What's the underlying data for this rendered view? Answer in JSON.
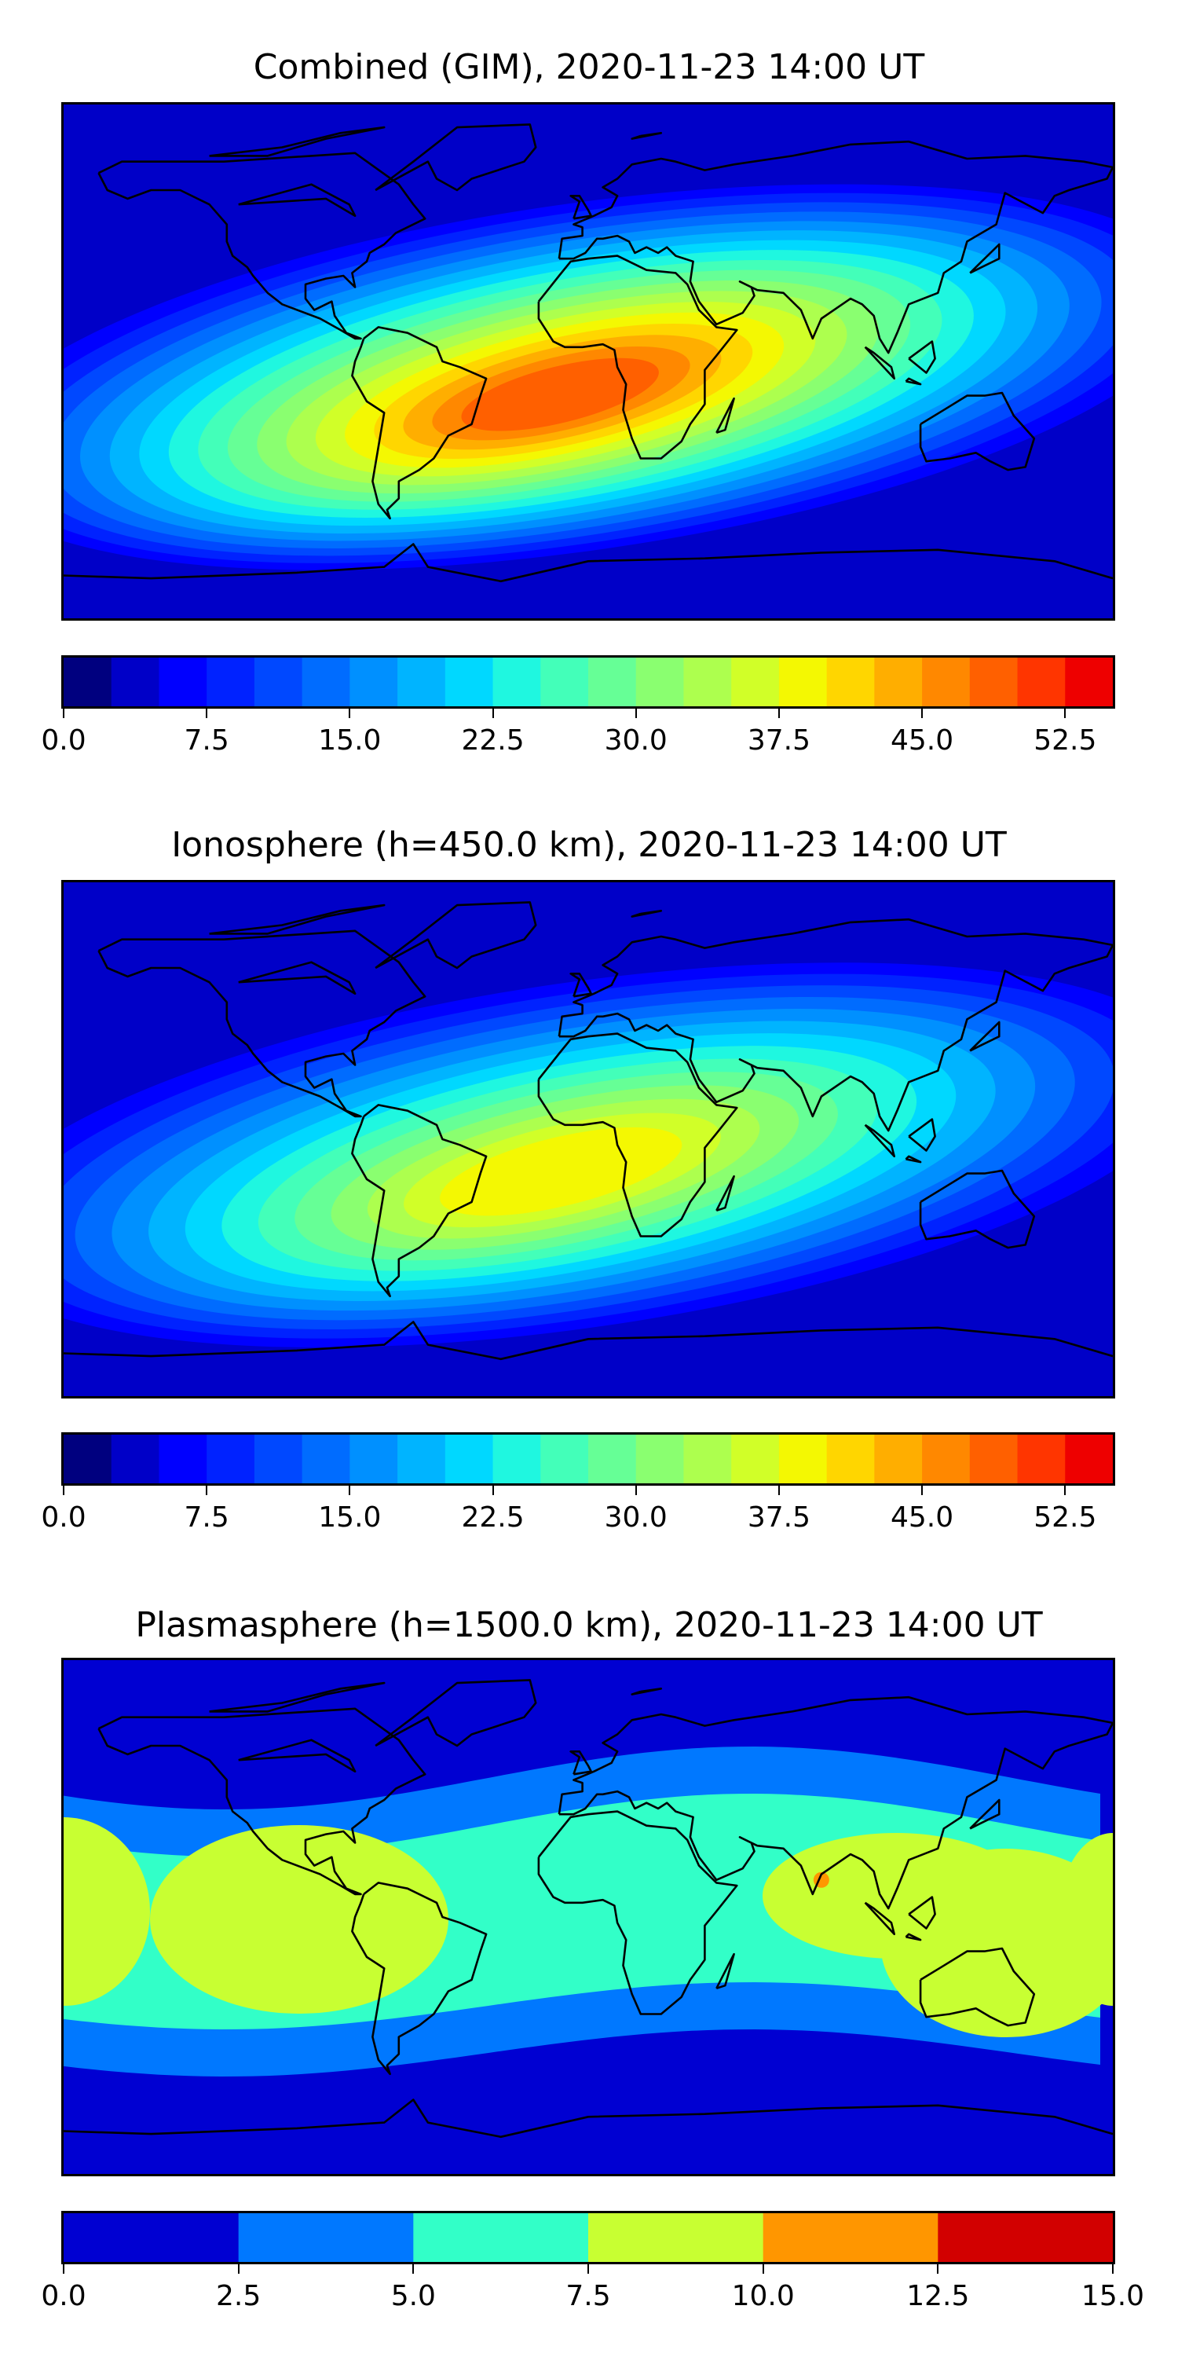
{
  "panels": [
    {
      "title": "Combined (GIM), 2020-11-23 14:00 UT",
      "scale": "tec_jet_22",
      "hotspot": {
        "lon": -10,
        "lat": -12,
        "peak": 49
      },
      "colorbar": {
        "min": 0.0,
        "max": 55.0,
        "levels": 22,
        "ticks": [
          "0.0",
          "7.5",
          "15.0",
          "22.5",
          "30.0",
          "37.5",
          "45.0",
          "52.5"
        ],
        "tick_values": [
          0,
          7.5,
          15,
          22.5,
          30,
          37.5,
          45,
          52.5
        ]
      }
    },
    {
      "title": "Ionosphere  (h=450.0 km), 2020-11-23 14:00 UT",
      "scale": "tec_jet_22",
      "hotspot": {
        "lon": -10,
        "lat": -12,
        "peak": 40
      },
      "colorbar": {
        "min": 0.0,
        "max": 55.0,
        "levels": 22,
        "ticks": [
          "0.0",
          "7.5",
          "15.0",
          "22.5",
          "30.0",
          "37.5",
          "45.0",
          "52.5"
        ],
        "tick_values": [
          0,
          7.5,
          15,
          22.5,
          30,
          37.5,
          45,
          52.5
        ]
      }
    },
    {
      "title": "Plasmasphere (h=1500.0 km), 2020-11-23 14:00 UT",
      "scale": "plasma_6",
      "colorbar": {
        "min": 0.0,
        "max": 15.0,
        "levels": 6,
        "ticks": [
          "0.0",
          "2.5",
          "5.0",
          "7.5",
          "10.0",
          "12.5",
          "15.0"
        ],
        "tick_values": [
          0,
          2.5,
          5,
          7.5,
          10,
          12.5,
          15
        ]
      }
    }
  ],
  "colors": {
    "tec_jet_22": [
      "#00007f",
      "#0000c8",
      "#0000ff",
      "#0022ff",
      "#0048ff",
      "#006cff",
      "#0090ff",
      "#00b4ff",
      "#00d8ff",
      "#1ff7e0",
      "#43ffb9",
      "#66ff96",
      "#8aff70",
      "#adff4e",
      "#d1ff28",
      "#f4f802",
      "#ffd600",
      "#ffae00",
      "#ff8800",
      "#ff6000",
      "#ff3500",
      "#ee0000",
      "#c80000",
      "#8f0000"
    ],
    "plasma_6": [
      "#0000d2",
      "#0078ff",
      "#32ffc8",
      "#c8ff32",
      "#ff9600",
      "#d20000"
    ],
    "coastline": "#000000"
  }
}
